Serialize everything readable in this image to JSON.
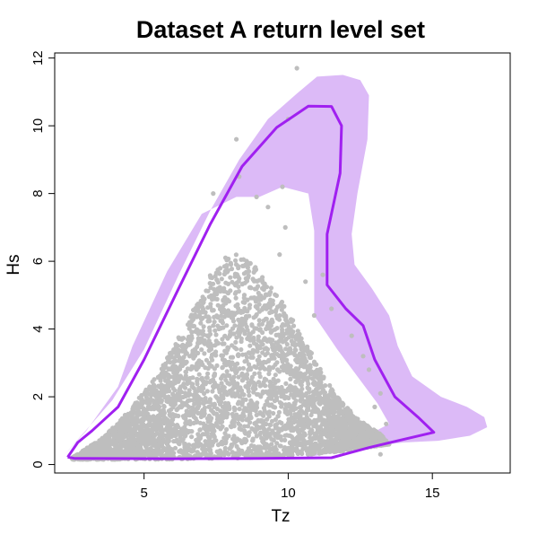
{
  "chart_data": {
    "type": "scatter",
    "title": "Dataset A return level set",
    "xlabel": "Tz",
    "ylabel": "Hs",
    "xlim": [
      1.9,
      17.7
    ],
    "ylim": [
      -0.25,
      12.15
    ],
    "xticks": [
      5,
      10,
      15
    ],
    "yticks": [
      0,
      2,
      4,
      6,
      8,
      10,
      12
    ],
    "grid": false,
    "colors": {
      "points": "#bebebe",
      "contour": "#a020f0",
      "band": "#dcbaf7",
      "frame": "#000000"
    },
    "scatter_region": {
      "lower_bound": [
        [
          2.5,
          0.15
        ],
        [
          6,
          0.15
        ],
        [
          9,
          0.2
        ],
        [
          11.5,
          0.35
        ],
        [
          13.5,
          0.6
        ]
      ],
      "upper_bound": [
        [
          2.5,
          0.2
        ],
        [
          3.5,
          0.75
        ],
        [
          4.5,
          1.6
        ],
        [
          5.5,
          2.7
        ],
        [
          6.5,
          4.2
        ],
        [
          7.3,
          5.6
        ],
        [
          8,
          6.3
        ],
        [
          8.8,
          5.9
        ],
        [
          9.8,
          4.8
        ],
        [
          10.8,
          3.3
        ],
        [
          11.6,
          2.1
        ],
        [
          12.4,
          1.35
        ],
        [
          13.2,
          0.9
        ],
        [
          13.5,
          0.6
        ]
      ],
      "n_points": 4500
    },
    "outliers": [
      [
        10.3,
        11.7
      ],
      [
        10.0,
        10.2
      ],
      [
        8.2,
        9.6
      ],
      [
        9.8,
        8.2
      ],
      [
        9.9,
        7.0
      ],
      [
        9.7,
        6.2
      ],
      [
        10.6,
        5.4
      ],
      [
        11.5,
        4.6
      ],
      [
        12.2,
        3.8
      ],
      [
        12.6,
        3.2
      ],
      [
        13.2,
        2.1
      ],
      [
        12.8,
        2.8
      ],
      [
        11.2,
        5.6
      ],
      [
        8.3,
        8.5
      ],
      [
        9.3,
        7.6
      ],
      [
        10.9,
        4.4
      ],
      [
        13.0,
        1.7
      ],
      [
        13.4,
        1.2
      ],
      [
        13.2,
        0.3
      ],
      [
        7.4,
        8.0
      ],
      [
        8.9,
        7.9
      ]
    ],
    "series": [
      {
        "kind": "line",
        "points": [
          [
            2.35,
            0.22
          ],
          [
            2.7,
            0.65
          ],
          [
            3.2,
            1.0
          ],
          [
            4.1,
            1.7
          ],
          [
            5.0,
            3.1
          ],
          [
            6.2,
            5.2
          ],
          [
            7.3,
            7.1
          ],
          [
            8.4,
            8.8
          ],
          [
            9.6,
            9.95
          ],
          [
            10.7,
            10.58
          ],
          [
            11.5,
            10.57
          ],
          [
            11.85,
            10.0
          ],
          [
            11.8,
            8.6
          ],
          [
            11.35,
            6.8
          ],
          [
            11.35,
            5.3
          ],
          [
            12.0,
            4.6
          ],
          [
            12.6,
            4.1
          ],
          [
            13.0,
            3.1
          ],
          [
            13.7,
            2.0
          ],
          [
            14.5,
            1.4
          ],
          [
            15.05,
            0.95
          ],
          [
            13.8,
            0.7
          ],
          [
            12.8,
            0.5
          ],
          [
            11.5,
            0.2
          ],
          [
            9.0,
            0.18
          ],
          [
            6.0,
            0.17
          ],
          [
            2.6,
            0.18
          ],
          [
            2.35,
            0.22
          ]
        ]
      },
      {
        "kind": "band",
        "points": [
          [
            2.2,
            0.25
          ],
          [
            3.9,
            1.9
          ],
          [
            5.0,
            3.4
          ],
          [
            6.2,
            5.6
          ],
          [
            7.3,
            7.5
          ],
          [
            8.3,
            9.0
          ],
          [
            9.3,
            10.2
          ],
          [
            10.3,
            10.95
          ],
          [
            11.0,
            11.45
          ],
          [
            11.9,
            11.5
          ],
          [
            12.5,
            11.35
          ],
          [
            12.8,
            10.9
          ],
          [
            12.75,
            9.6
          ],
          [
            12.4,
            8.0
          ],
          [
            12.2,
            6.8
          ],
          [
            12.3,
            5.9
          ],
          [
            12.9,
            5.2
          ],
          [
            13.5,
            4.4
          ],
          [
            13.8,
            3.5
          ],
          [
            14.3,
            2.6
          ],
          [
            15.3,
            2.0
          ],
          [
            16.2,
            1.7
          ],
          [
            16.8,
            1.4
          ],
          [
            16.9,
            1.1
          ],
          [
            16.3,
            0.85
          ],
          [
            15.2,
            0.7
          ],
          [
            14.0,
            0.65
          ],
          [
            13.0,
            0.55
          ],
          [
            12.0,
            0.4
          ],
          [
            10.5,
            0.2
          ],
          [
            11.2,
            0.35
          ],
          [
            12.5,
            0.75
          ],
          [
            13.5,
            1.2
          ],
          [
            13.1,
            1.8
          ],
          [
            12.4,
            2.6
          ],
          [
            11.7,
            3.4
          ],
          [
            10.9,
            4.4
          ],
          [
            10.9,
            5.4
          ],
          [
            10.9,
            6.9
          ],
          [
            10.7,
            8.0
          ],
          [
            9.8,
            8.2
          ],
          [
            9.0,
            7.9
          ],
          [
            8.2,
            7.9
          ],
          [
            7.0,
            7.4
          ],
          [
            5.8,
            5.7
          ],
          [
            4.6,
            3.5
          ],
          [
            4.1,
            2.3
          ],
          [
            3.0,
            1.0
          ],
          [
            2.2,
            0.25
          ]
        ]
      }
    ]
  }
}
